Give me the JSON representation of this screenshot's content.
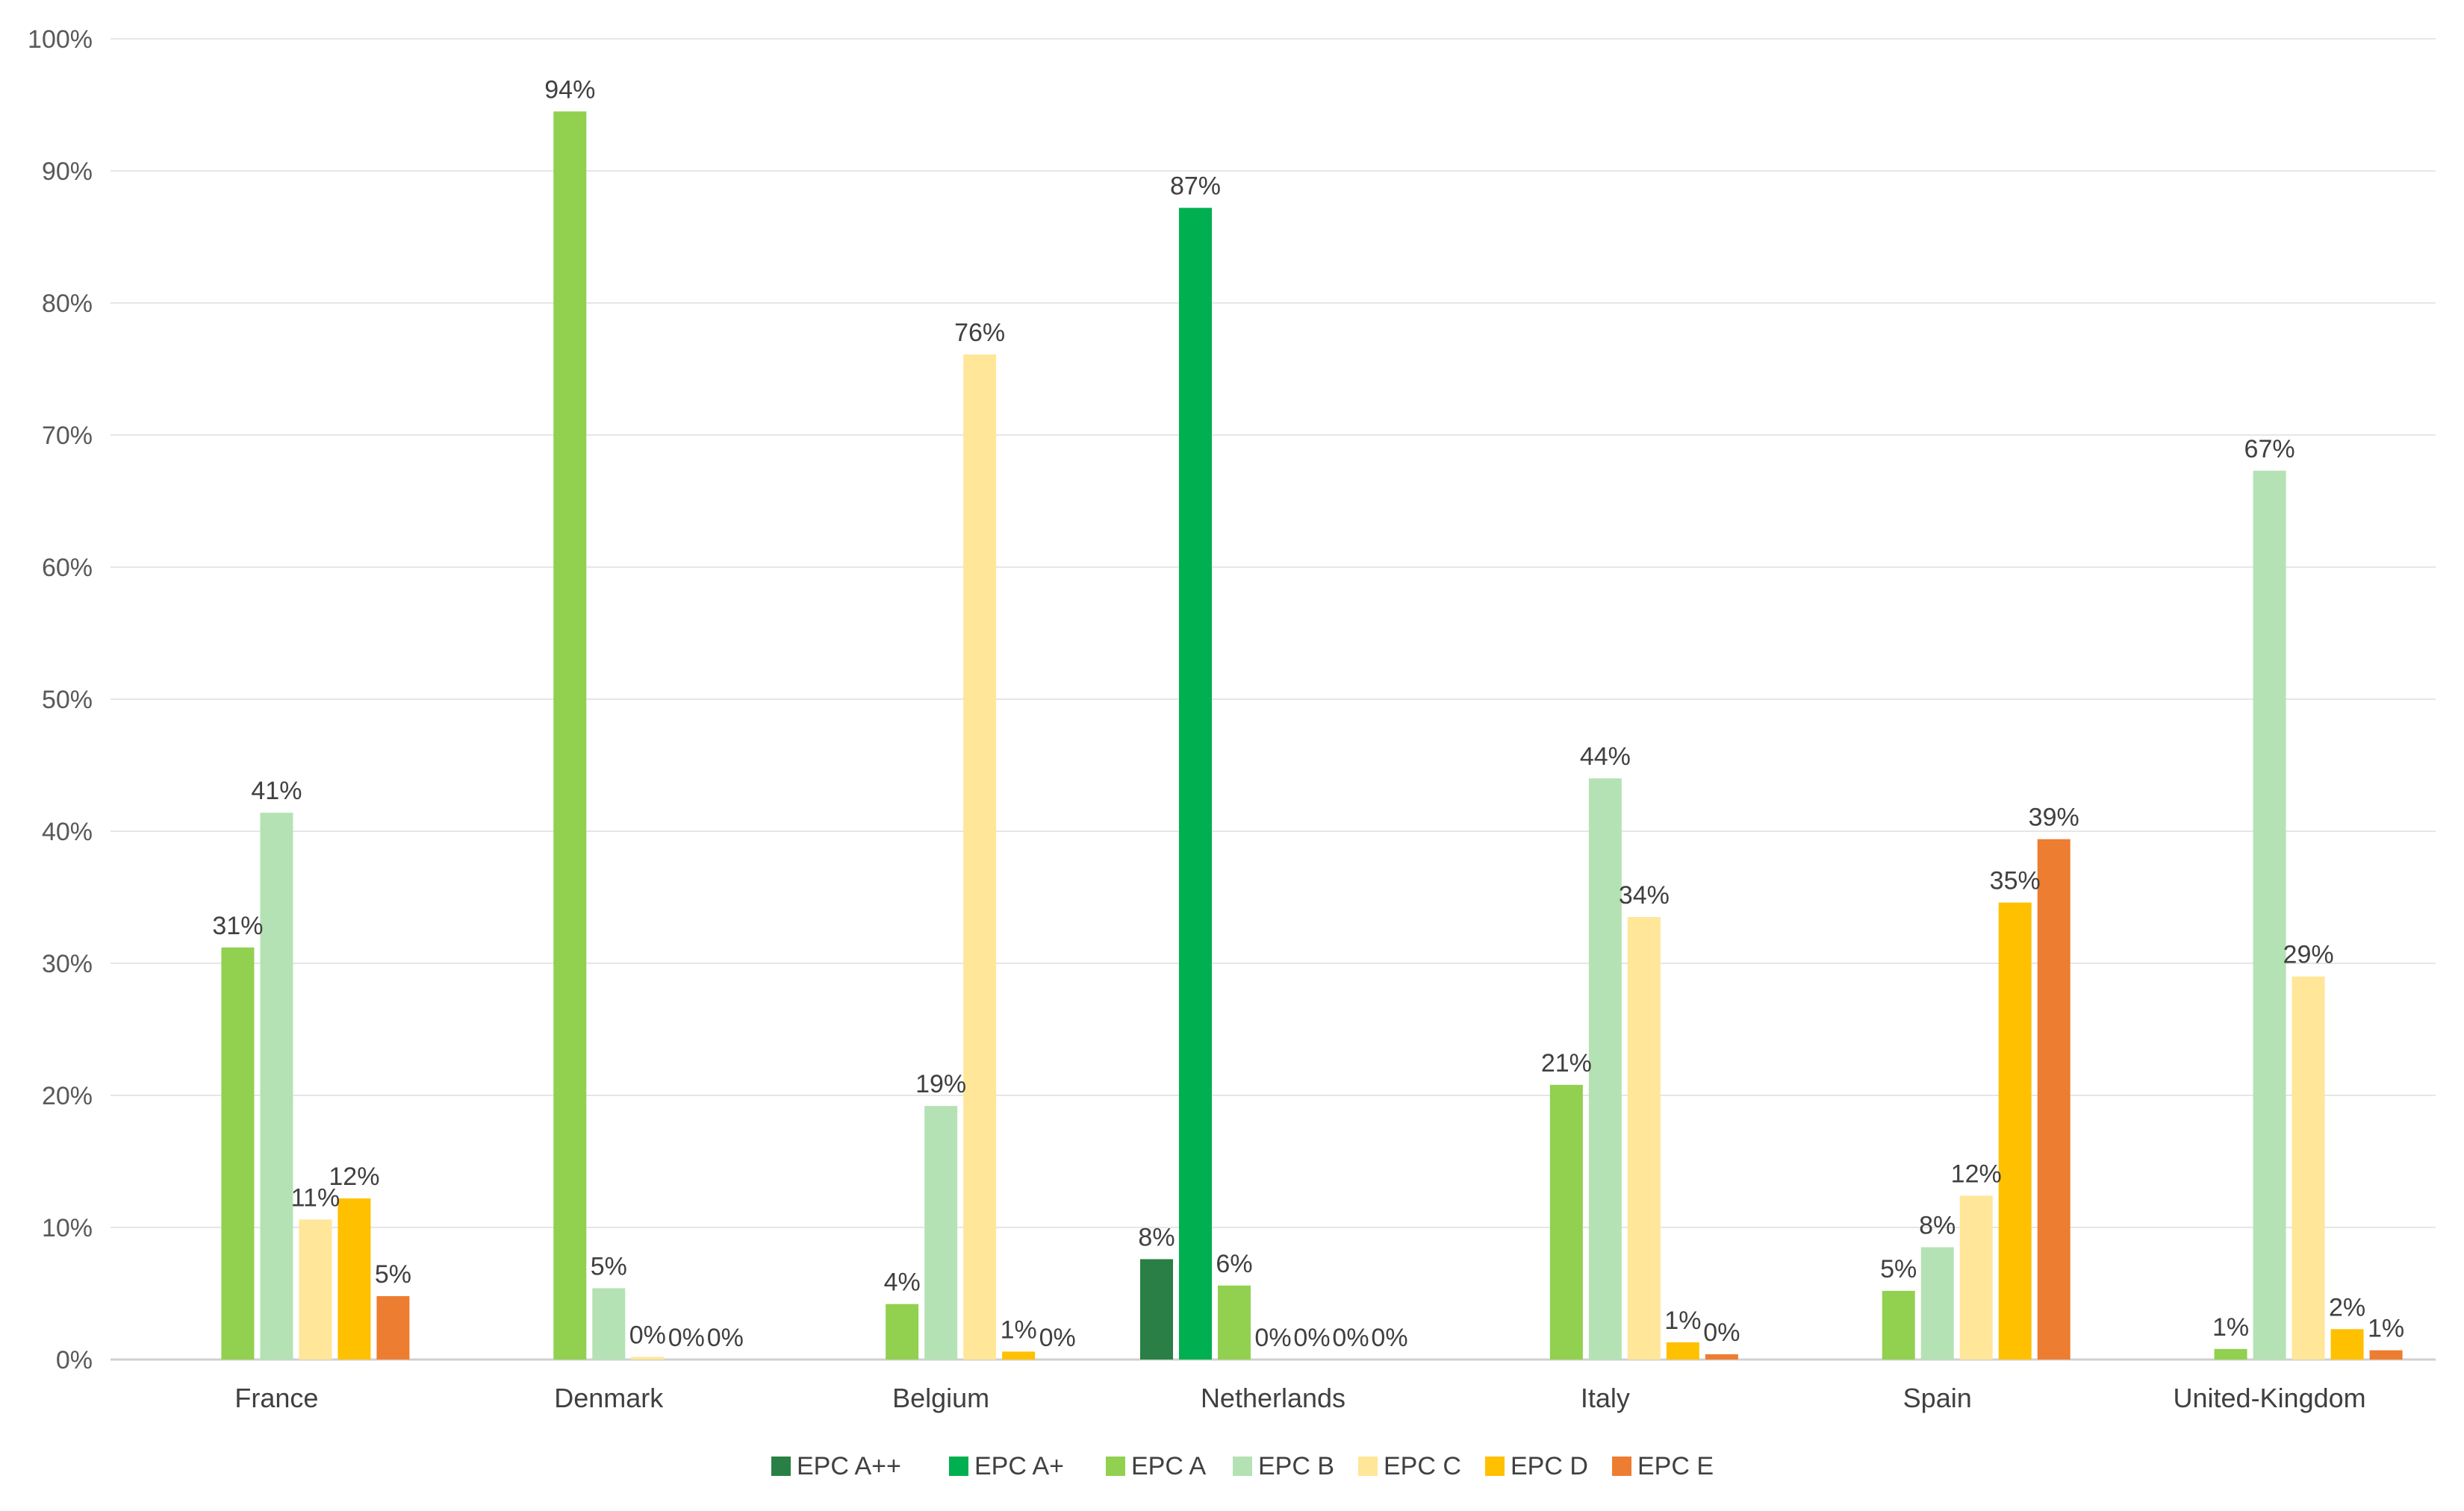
{
  "chart_data": {
    "type": "bar",
    "title": "",
    "xlabel": "",
    "ylabel": "",
    "ylim": [
      0,
      100
    ],
    "y_ticks": [
      "0%",
      "10%",
      "20%",
      "30%",
      "40%",
      "50%",
      "60%",
      "70%",
      "80%",
      "90%",
      "100%"
    ],
    "grid": true,
    "legend_position": "bottom",
    "categories": [
      "France",
      "Denmark",
      "Belgium",
      "Netherlands",
      "Italy",
      "Spain",
      "United-Kingdom"
    ],
    "series": [
      {
        "name": "EPC A++",
        "color": "#2a7f46",
        "values": [
          null,
          null,
          null,
          7.6,
          null,
          null,
          null
        ],
        "labels": [
          "",
          "",
          "",
          "8%",
          "",
          "",
          ""
        ]
      },
      {
        "name": "EPC A+",
        "color": "#00b050",
        "values": [
          null,
          null,
          null,
          87.2,
          null,
          null,
          null
        ],
        "labels": [
          "",
          "",
          "",
          "87%",
          "",
          "",
          ""
        ]
      },
      {
        "name": "EPC A",
        "color": "#92d050",
        "values": [
          31.2,
          94.5,
          4.2,
          5.6,
          20.8,
          5.2,
          0.8
        ],
        "labels": [
          "31%",
          "94%",
          "4%",
          "6%",
          "21%",
          "5%",
          "1%"
        ]
      },
      {
        "name": "EPC B",
        "color": "#b4e2b4",
        "values": [
          41.4,
          5.4,
          19.2,
          0.0,
          44.0,
          8.5,
          67.3
        ],
        "labels": [
          "41%",
          "5%",
          "19%",
          "0%",
          "44%",
          "8%",
          "67%"
        ]
      },
      {
        "name": "EPC C",
        "color": "#ffe699",
        "values": [
          10.6,
          0.2,
          76.1,
          0.0,
          33.5,
          12.4,
          29.0
        ],
        "labels": [
          "11%",
          "0%",
          "76%",
          "0%",
          "34%",
          "12%",
          "29%"
        ]
      },
      {
        "name": "EPC D",
        "color": "#ffc000",
        "values": [
          12.2,
          0.0,
          0.6,
          0.0,
          1.3,
          34.6,
          2.3
        ],
        "labels": [
          "12%",
          "0%",
          "1%",
          "0%",
          "1%",
          "35%",
          "2%"
        ]
      },
      {
        "name": "EPC E",
        "color": "#ed7d31",
        "values": [
          4.8,
          0.0,
          0.0,
          0.0,
          0.4,
          39.4,
          0.7
        ],
        "labels": [
          "5%",
          "0%",
          "0%",
          "0%",
          "0%",
          "39%",
          "1%"
        ]
      }
    ]
  }
}
